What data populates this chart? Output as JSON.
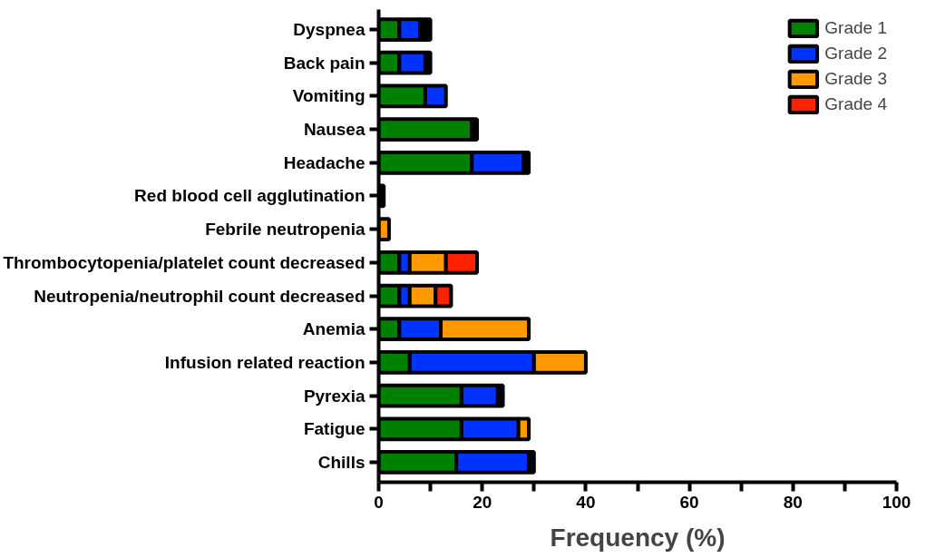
{
  "chart_data": {
    "type": "bar",
    "orientation": "horizontal",
    "stacked": true,
    "xlabel": "Frequency (%)",
    "categories": [
      "Dyspnea",
      "Back pain",
      "Vomiting",
      "Nausea",
      "Headache",
      "Red blood cell agglutination",
      "Febrile neutropenia",
      "Thrombocytopenia/platelet count decreased",
      "Neutropenia/neutrophil count decreased",
      "Anemia",
      "Infusion related reaction",
      "Pyrexia",
      "Fatigue",
      "Chills"
    ],
    "series": [
      {
        "name": "Grade 1",
        "color": "#008000",
        "values": [
          4,
          4,
          9,
          18,
          18,
          0,
          0,
          4,
          4,
          4,
          6,
          16,
          16,
          15
        ]
      },
      {
        "name": "Grade 2",
        "color": "#0033ff",
        "values": [
          4,
          5,
          4,
          0,
          10,
          0,
          0,
          2,
          2,
          8,
          24,
          7,
          11,
          14
        ]
      },
      {
        "name": "Grade 3",
        "color": "#ff9900",
        "values": [
          0,
          0,
          0,
          0,
          0,
          0,
          2,
          7,
          5,
          17,
          10,
          0,
          2,
          0
        ]
      },
      {
        "name": "Grade 4",
        "color": "#ff2200",
        "values": [
          0,
          0,
          0,
          0,
          0,
          0,
          0,
          6,
          3,
          0,
          0,
          0,
          0,
          0
        ]
      },
      {
        "color": "#000000",
        "values": [
          2,
          1,
          0,
          1,
          1,
          1,
          0,
          0,
          0,
          0,
          0,
          1,
          0,
          1
        ]
      }
    ],
    "xlim": [
      0,
      100
    ],
    "xticks": [
      0,
      {
        "value": 10,
        "label": null
      },
      20,
      {
        "value": 30,
        "label": null
      },
      40,
      {
        "value": 50,
        "label": null
      },
      60,
      {
        "value": 70,
        "label": null
      },
      80,
      {
        "value": 90,
        "label": null
      },
      100
    ],
    "grid": false,
    "legend": "top right"
  }
}
